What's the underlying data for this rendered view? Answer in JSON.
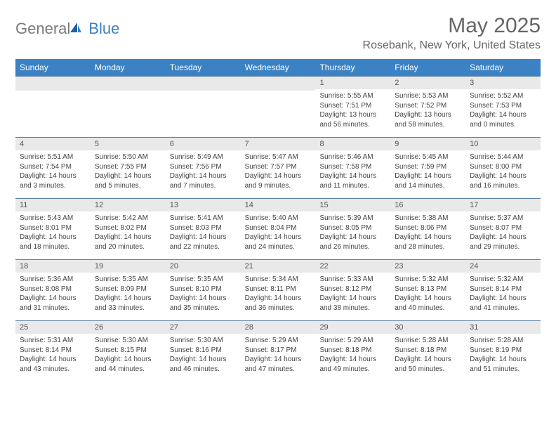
{
  "logo": {
    "text1": "General",
    "text2": "Blue"
  },
  "title": "May 2025",
  "location": "Rosebank, New York, United States",
  "colors": {
    "header_bg": "#3b82c4",
    "header_text": "#ffffff",
    "daynum_bg": "#e9e9e9",
    "row_border": "#5b7fa6",
    "text": "#444444",
    "title_color": "#666666"
  },
  "dayNames": [
    "Sunday",
    "Monday",
    "Tuesday",
    "Wednesday",
    "Thursday",
    "Friday",
    "Saturday"
  ],
  "weeks": [
    [
      null,
      null,
      null,
      null,
      {
        "n": "1",
        "sr": "5:55 AM",
        "ss": "7:51 PM",
        "dl": "13 hours and 56 minutes."
      },
      {
        "n": "2",
        "sr": "5:53 AM",
        "ss": "7:52 PM",
        "dl": "13 hours and 58 minutes."
      },
      {
        "n": "3",
        "sr": "5:52 AM",
        "ss": "7:53 PM",
        "dl": "14 hours and 0 minutes."
      }
    ],
    [
      {
        "n": "4",
        "sr": "5:51 AM",
        "ss": "7:54 PM",
        "dl": "14 hours and 3 minutes."
      },
      {
        "n": "5",
        "sr": "5:50 AM",
        "ss": "7:55 PM",
        "dl": "14 hours and 5 minutes."
      },
      {
        "n": "6",
        "sr": "5:49 AM",
        "ss": "7:56 PM",
        "dl": "14 hours and 7 minutes."
      },
      {
        "n": "7",
        "sr": "5:47 AM",
        "ss": "7:57 PM",
        "dl": "14 hours and 9 minutes."
      },
      {
        "n": "8",
        "sr": "5:46 AM",
        "ss": "7:58 PM",
        "dl": "14 hours and 11 minutes."
      },
      {
        "n": "9",
        "sr": "5:45 AM",
        "ss": "7:59 PM",
        "dl": "14 hours and 14 minutes."
      },
      {
        "n": "10",
        "sr": "5:44 AM",
        "ss": "8:00 PM",
        "dl": "14 hours and 16 minutes."
      }
    ],
    [
      {
        "n": "11",
        "sr": "5:43 AM",
        "ss": "8:01 PM",
        "dl": "14 hours and 18 minutes."
      },
      {
        "n": "12",
        "sr": "5:42 AM",
        "ss": "8:02 PM",
        "dl": "14 hours and 20 minutes."
      },
      {
        "n": "13",
        "sr": "5:41 AM",
        "ss": "8:03 PM",
        "dl": "14 hours and 22 minutes."
      },
      {
        "n": "14",
        "sr": "5:40 AM",
        "ss": "8:04 PM",
        "dl": "14 hours and 24 minutes."
      },
      {
        "n": "15",
        "sr": "5:39 AM",
        "ss": "8:05 PM",
        "dl": "14 hours and 26 minutes."
      },
      {
        "n": "16",
        "sr": "5:38 AM",
        "ss": "8:06 PM",
        "dl": "14 hours and 28 minutes."
      },
      {
        "n": "17",
        "sr": "5:37 AM",
        "ss": "8:07 PM",
        "dl": "14 hours and 29 minutes."
      }
    ],
    [
      {
        "n": "18",
        "sr": "5:36 AM",
        "ss": "8:08 PM",
        "dl": "14 hours and 31 minutes."
      },
      {
        "n": "19",
        "sr": "5:35 AM",
        "ss": "8:09 PM",
        "dl": "14 hours and 33 minutes."
      },
      {
        "n": "20",
        "sr": "5:35 AM",
        "ss": "8:10 PM",
        "dl": "14 hours and 35 minutes."
      },
      {
        "n": "21",
        "sr": "5:34 AM",
        "ss": "8:11 PM",
        "dl": "14 hours and 36 minutes."
      },
      {
        "n": "22",
        "sr": "5:33 AM",
        "ss": "8:12 PM",
        "dl": "14 hours and 38 minutes."
      },
      {
        "n": "23",
        "sr": "5:32 AM",
        "ss": "8:13 PM",
        "dl": "14 hours and 40 minutes."
      },
      {
        "n": "24",
        "sr": "5:32 AM",
        "ss": "8:14 PM",
        "dl": "14 hours and 41 minutes."
      }
    ],
    [
      {
        "n": "25",
        "sr": "5:31 AM",
        "ss": "8:14 PM",
        "dl": "14 hours and 43 minutes."
      },
      {
        "n": "26",
        "sr": "5:30 AM",
        "ss": "8:15 PM",
        "dl": "14 hours and 44 minutes."
      },
      {
        "n": "27",
        "sr": "5:30 AM",
        "ss": "8:16 PM",
        "dl": "14 hours and 46 minutes."
      },
      {
        "n": "28",
        "sr": "5:29 AM",
        "ss": "8:17 PM",
        "dl": "14 hours and 47 minutes."
      },
      {
        "n": "29",
        "sr": "5:29 AM",
        "ss": "8:18 PM",
        "dl": "14 hours and 49 minutes."
      },
      {
        "n": "30",
        "sr": "5:28 AM",
        "ss": "8:18 PM",
        "dl": "14 hours and 50 minutes."
      },
      {
        "n": "31",
        "sr": "5:28 AM",
        "ss": "8:19 PM",
        "dl": "14 hours and 51 minutes."
      }
    ]
  ],
  "labels": {
    "sunrise": "Sunrise: ",
    "sunset": "Sunset: ",
    "daylight": "Daylight: "
  }
}
